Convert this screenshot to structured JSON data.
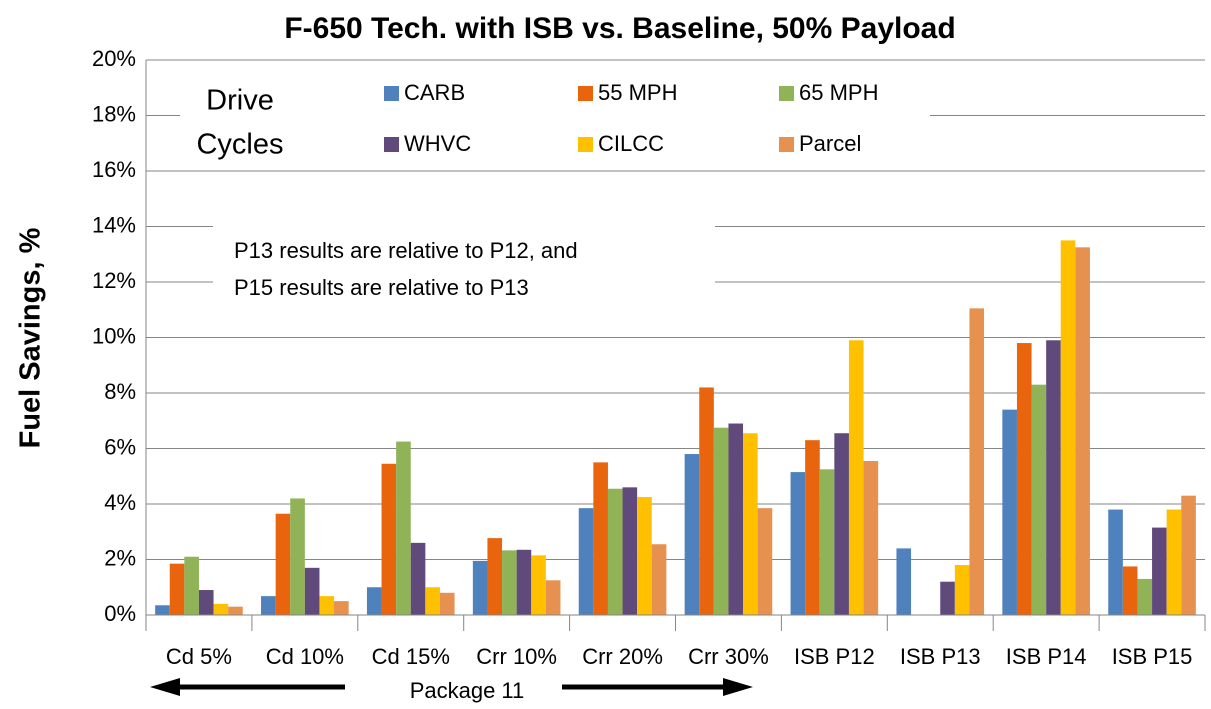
{
  "chart_data": {
    "type": "bar",
    "title": "F-650 Tech. with ISB vs. Baseline, 50% Payload",
    "y_label": "Fuel Savings, %",
    "legend_title": [
      "Drive",
      "Cycles"
    ],
    "annotation": [
      "P13 results are relative to P12, and",
      "P15 results are relative to P13"
    ],
    "x_group_label": "Package 11",
    "categories": [
      "Cd 5%",
      "Cd 10%",
      "Cd 15%",
      "Crr 10%",
      "Crr 20%",
      "Crr 30%",
      "ISB P12",
      "ISB P13",
      "ISB P14",
      "ISB P15"
    ],
    "series": [
      {
        "name": "CARB",
        "color": "#4f81bd",
        "values": [
          0.35,
          0.68,
          1.0,
          1.95,
          3.85,
          5.8,
          5.15,
          2.4,
          7.4,
          3.8
        ]
      },
      {
        "name": "55 MPH",
        "color": "#e8650e",
        "values": [
          1.85,
          3.65,
          5.45,
          2.77,
          5.5,
          8.2,
          6.3,
          null,
          9.8,
          1.75
        ]
      },
      {
        "name": "65 MPH",
        "color": "#8fb356",
        "values": [
          2.1,
          4.2,
          6.25,
          2.33,
          4.55,
          6.75,
          5.25,
          null,
          8.3,
          1.3
        ]
      },
      {
        "name": "WHVC",
        "color": "#604a7b",
        "values": [
          0.9,
          1.7,
          2.6,
          2.35,
          4.6,
          6.9,
          6.55,
          1.2,
          9.9,
          3.15
        ]
      },
      {
        "name": "CILCC",
        "color": "#ffc000",
        "values": [
          0.4,
          0.68,
          1.0,
          2.15,
          4.25,
          6.55,
          9.9,
          1.8,
          13.5,
          3.8
        ]
      },
      {
        "name": "Parcel",
        "color": "#e6914f",
        "values": [
          0.3,
          0.5,
          0.8,
          1.25,
          2.55,
          3.85,
          5.55,
          11.05,
          13.25,
          4.3
        ]
      }
    ],
    "ylim": [
      0,
      20
    ],
    "yticks": [
      {
        "value": 0,
        "label": "0%"
      },
      {
        "value": 2,
        "label": "2%"
      },
      {
        "value": 4,
        "label": "4%"
      },
      {
        "value": 6,
        "label": "6%"
      },
      {
        "value": 8,
        "label": "8%"
      },
      {
        "value": 10,
        "label": "10%"
      },
      {
        "value": 12,
        "label": "12%"
      },
      {
        "value": 14,
        "label": "14%"
      },
      {
        "value": 16,
        "label": "16%"
      },
      {
        "value": 18,
        "label": "18%"
      },
      {
        "value": 20,
        "label": "20%"
      }
    ],
    "grid": true
  }
}
